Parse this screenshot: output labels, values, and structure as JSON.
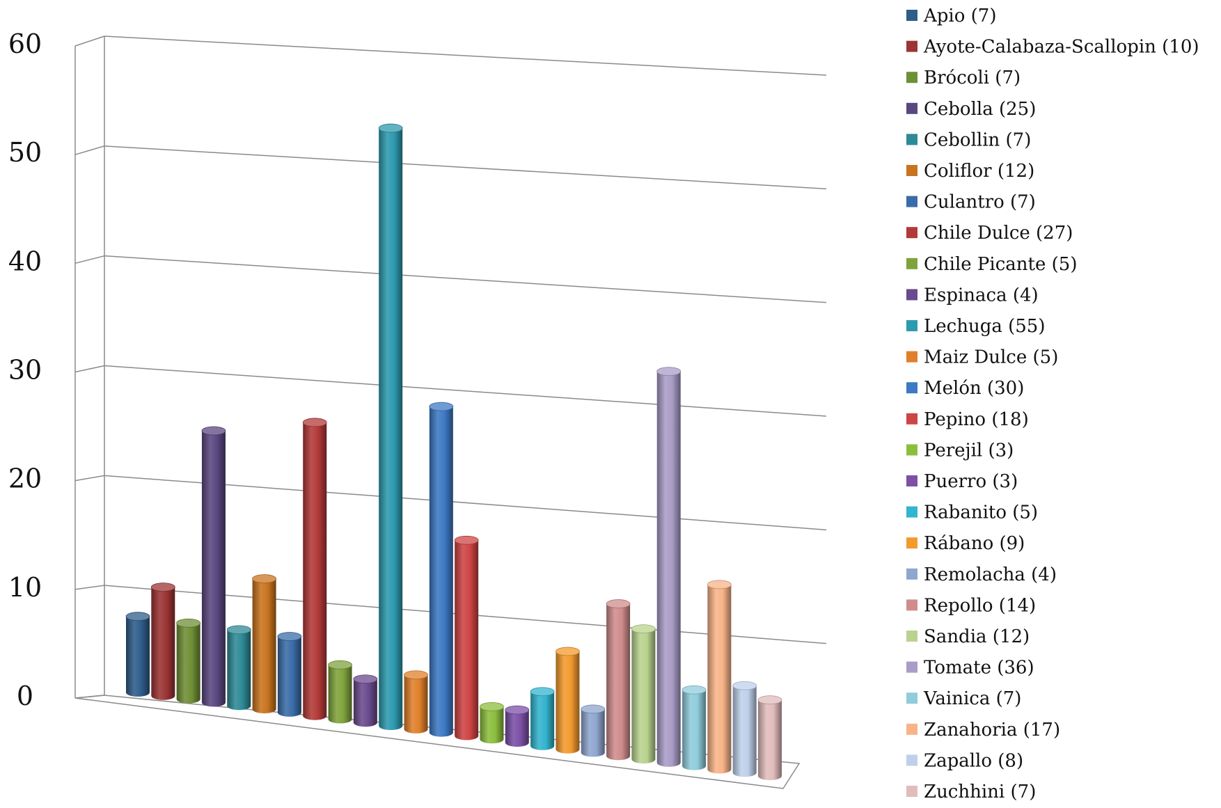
{
  "chart_data": {
    "type": "bar",
    "style": "3d-cylinder",
    "grid": true,
    "legend_position": "right",
    "ylim": [
      0,
      60
    ],
    "yticks": [
      "0",
      "10",
      "20",
      "30",
      "40",
      "50",
      "60"
    ],
    "series": [
      {
        "name": "Apio (7)",
        "value": 7,
        "color": "#2F5D8A"
      },
      {
        "name": "Ayote-Calabaza-Scallopin (10)",
        "value": 10,
        "color": "#9C3434"
      },
      {
        "name": "Brócoli (7)",
        "value": 7,
        "color": "#6F8F35"
      },
      {
        "name": "Cebolla (25)",
        "value": 25,
        "color": "#5A4780"
      },
      {
        "name": "Cebollin (7)",
        "value": 7,
        "color": "#2E8A96"
      },
      {
        "name": "Coliflor (12)",
        "value": 12,
        "color": "#C8741F"
      },
      {
        "name": "Culantro (7)",
        "value": 7,
        "color": "#3A6CA8"
      },
      {
        "name": "Chile Dulce (27)",
        "value": 27,
        "color": "#B23A38"
      },
      {
        "name": "Chile Picante (5)",
        "value": 5,
        "color": "#7FA33C"
      },
      {
        "name": "Espinaca (4)",
        "value": 4,
        "color": "#6A4A8E"
      },
      {
        "name": "Lechuga (55)",
        "value": 55,
        "color": "#2D9AAE"
      },
      {
        "name": "Maiz Dulce (5)",
        "value": 5,
        "color": "#E0802A"
      },
      {
        "name": "Melón (30)",
        "value": 30,
        "color": "#3D79C4"
      },
      {
        "name": "Pepino (18)",
        "value": 18,
        "color": "#CF4444"
      },
      {
        "name": "Perejil (3)",
        "value": 3,
        "color": "#8CBE3E"
      },
      {
        "name": "Puerro (3)",
        "value": 3,
        "color": "#7B50A6"
      },
      {
        "name": "Rabanito (5)",
        "value": 5,
        "color": "#33B4CF"
      },
      {
        "name": "Rábano (9)",
        "value": 9,
        "color": "#F39A2E"
      },
      {
        "name": "Remolacha (4)",
        "value": 4,
        "color": "#8FA6CF"
      },
      {
        "name": "Repollo (14)",
        "value": 14,
        "color": "#D08C8C"
      },
      {
        "name": "Sandia (12)",
        "value": 12,
        "color": "#B9D38E"
      },
      {
        "name": "Tomate (36)",
        "value": 36,
        "color": "#A99CC6"
      },
      {
        "name": "Vainica (7)",
        "value": 7,
        "color": "#8FCCDC"
      },
      {
        "name": "Zanahoria (17)",
        "value": 17,
        "color": "#F8B488"
      },
      {
        "name": "Zapallo (8)",
        "value": 8,
        "color": "#BFD0EB"
      },
      {
        "name": "Zuchhini (7)",
        "value": 7,
        "color": "#E2BCBC"
      }
    ]
  }
}
